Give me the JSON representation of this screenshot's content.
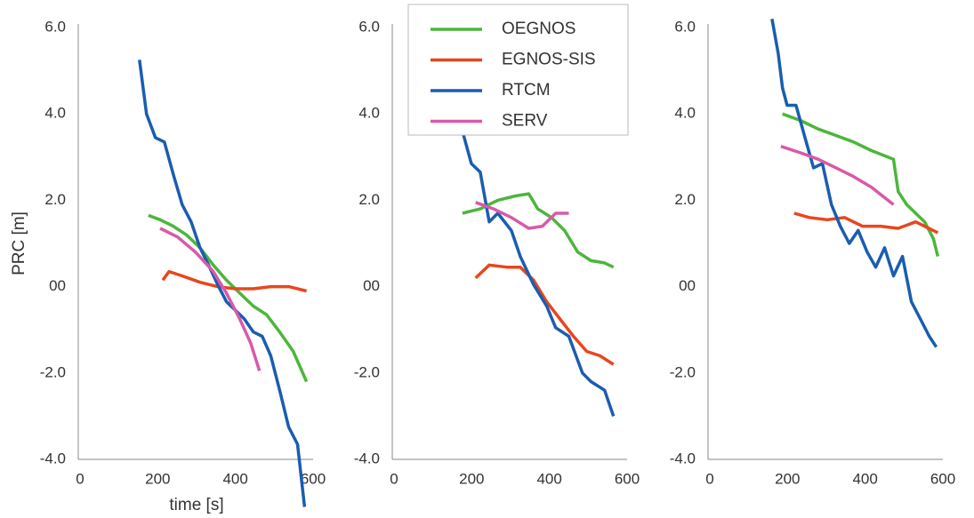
{
  "chart_data": [
    {
      "type": "line",
      "ylabel": "PRC [m]",
      "xlabel": "time [s]",
      "xlim": [
        0,
        600
      ],
      "xticks": [
        0,
        200,
        400,
        600
      ],
      "ylim": [
        -4,
        6
      ],
      "yticks": [
        {
          "value": 6,
          "label": "6.0"
        },
        {
          "value": 4,
          "label": "4.0"
        },
        {
          "value": 2,
          "label": "2.0"
        },
        {
          "value": 0,
          "label": "00"
        },
        {
          "value": -2,
          "label": "-2.0"
        },
        {
          "value": -4,
          "label": "-4.0"
        }
      ],
      "grid": false,
      "series": [
        {
          "color": "#4cb63c",
          "x": [
            176,
            206,
            240,
            274,
            309,
            343,
            377,
            411,
            446,
            480,
            514,
            549,
            583
          ],
          "values": [
            1.65,
            1.55,
            1.4,
            1.2,
            0.9,
            0.5,
            0.15,
            -0.15,
            -0.45,
            -0.65,
            -1.05,
            -1.5,
            -2.2
          ]
        },
        {
          "color": "#e8461e",
          "x": [
            213,
            229,
            263,
            309,
            354,
            400,
            446,
            491,
            537,
            583
          ],
          "values": [
            0.15,
            0.35,
            0.25,
            0.1,
            0.0,
            -0.05,
            -0.05,
            0.0,
            0.0,
            -0.1
          ]
        },
        {
          "color": "#1a5db0",
          "x": [
            153,
            171,
            194,
            217,
            240,
            263,
            286,
            309,
            331,
            354,
            377,
            400,
            423,
            446,
            469,
            491,
            514,
            537,
            560,
            578
          ],
          "values": [
            5.25,
            4.0,
            3.45,
            3.35,
            2.6,
            1.9,
            1.5,
            0.9,
            0.5,
            0.05,
            -0.35,
            -0.55,
            -0.75,
            -1.05,
            -1.15,
            -1.6,
            -2.4,
            -3.25,
            -3.65,
            -5.1
          ]
        },
        {
          "color": "#d85aa8",
          "x": [
            206,
            251,
            297,
            343,
            377,
            411,
            439,
            462
          ],
          "values": [
            1.35,
            1.15,
            0.8,
            0.35,
            -0.15,
            -0.75,
            -1.3,
            -1.95
          ]
        }
      ]
    },
    {
      "type": "line",
      "xlim": [
        0,
        600
      ],
      "xticks": [
        0,
        200,
        400,
        600
      ],
      "ylim": [
        -4,
        6
      ],
      "yticks": [
        {
          "value": 6,
          "label": "6.0"
        },
        {
          "value": 4,
          "label": "4.0"
        },
        {
          "value": 2,
          "label": "2.0"
        },
        {
          "value": 0,
          "label": "00"
        },
        {
          "value": -2,
          "label": "-2.0"
        },
        {
          "value": -4,
          "label": "-4.0"
        }
      ],
      "grid": false,
      "legend": "upper center",
      "series": [
        {
          "name": "OEGNOS",
          "color": "#4cb63c",
          "x": [
            176,
            222,
            267,
            313,
            347,
            370,
            405,
            439,
            473,
            507,
            542,
            565
          ],
          "values": [
            1.7,
            1.8,
            2.0,
            2.1,
            2.15,
            1.8,
            1.6,
            1.3,
            0.8,
            0.6,
            0.55,
            0.45
          ]
        },
        {
          "name": "EGNOS-SIS",
          "color": "#e8461e",
          "x": [
            210,
            245,
            290,
            325,
            359,
            393,
            427,
            462,
            496,
            530,
            565
          ],
          "values": [
            0.2,
            0.5,
            0.45,
            0.45,
            0.15,
            -0.35,
            -0.75,
            -1.15,
            -1.5,
            -1.6,
            -1.8
          ]
        },
        {
          "name": "RTCM",
          "color": "#1a5db0",
          "x": [
            176,
            199,
            222,
            245,
            267,
            302,
            325,
            359,
            393,
            416,
            450,
            485,
            507,
            542,
            565
          ],
          "values": [
            3.6,
            2.85,
            2.65,
            1.5,
            1.7,
            1.3,
            0.7,
            0.05,
            -0.45,
            -0.95,
            -1.15,
            -2.0,
            -2.2,
            -2.4,
            -3.0
          ]
        },
        {
          "name": "SERV",
          "color": "#d85aa8",
          "x": [
            210,
            256,
            302,
            347,
            382,
            416,
            450
          ],
          "values": [
            1.95,
            1.8,
            1.6,
            1.35,
            1.4,
            1.7,
            1.7
          ]
        }
      ]
    },
    {
      "type": "line",
      "xlim": [
        0,
        600
      ],
      "xticks": [
        0,
        200,
        400,
        600
      ],
      "ylim": [
        -4,
        6
      ],
      "yticks": [
        {
          "value": 6,
          "label": "6.0"
        },
        {
          "value": 4,
          "label": "4.0"
        },
        {
          "value": 2,
          "label": "2.0"
        },
        {
          "value": 0,
          "label": "00"
        },
        {
          "value": -2,
          "label": "-2.0"
        },
        {
          "value": -4,
          "label": "-4.0"
        }
      ],
      "grid": false,
      "series": [
        {
          "color": "#4cb63c",
          "x": [
            187,
            233,
            279,
            325,
            370,
            416,
            473,
            485,
            507,
            530,
            553,
            576,
            587
          ],
          "values": [
            4.0,
            3.85,
            3.65,
            3.5,
            3.35,
            3.15,
            2.95,
            2.2,
            1.9,
            1.7,
            1.5,
            1.1,
            0.7
          ]
        },
        {
          "color": "#e8461e",
          "x": [
            217,
            256,
            302,
            347,
            393,
            439,
            485,
            530,
            587
          ],
          "values": [
            1.7,
            1.6,
            1.55,
            1.6,
            1.4,
            1.4,
            1.35,
            1.5,
            1.25
          ]
        },
        {
          "color": "#1a5db0",
          "x": [
            160,
            176,
            187,
            199,
            222,
            245,
            267,
            290,
            313,
            336,
            359,
            382,
            405,
            427,
            450,
            473,
            496,
            519,
            542,
            565,
            583
          ],
          "values": [
            6.2,
            5.4,
            4.6,
            4.2,
            4.2,
            3.45,
            2.75,
            2.85,
            1.9,
            1.4,
            1.0,
            1.3,
            0.8,
            0.45,
            0.9,
            0.25,
            0.7,
            -0.35,
            -0.75,
            -1.15,
            -1.4
          ]
        },
        {
          "color": "#d85aa8",
          "x": [
            183,
            233,
            279,
            325,
            370,
            416,
            473
          ],
          "values": [
            3.25,
            3.1,
            2.95,
            2.75,
            2.55,
            2.3,
            1.9
          ]
        }
      ]
    }
  ]
}
